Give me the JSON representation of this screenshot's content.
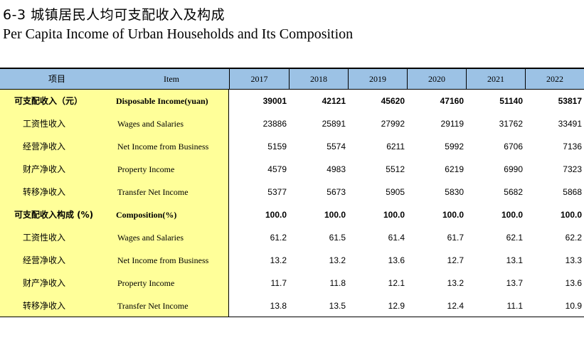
{
  "title_cn": "6-3 城镇居民人均可支配收入及构成",
  "title_en": "Per Capita Income of Urban Households and Its Composition",
  "header": {
    "item_cn": "项目",
    "item_en": "Item",
    "years": [
      "2017",
      "2018",
      "2019",
      "2020",
      "2021",
      "2022"
    ]
  },
  "rows": [
    {
      "cn": "可支配收入（元）",
      "en": "Disposable Income(yuan)",
      "bold": true,
      "values": [
        "39001",
        "42121",
        "45620",
        "47160",
        "51140",
        "53817"
      ]
    },
    {
      "cn": "工资性收入",
      "en": "Wages and Salaries",
      "bold": false,
      "values": [
        "23886",
        "25891",
        "27992",
        "29119",
        "31762",
        "33491"
      ]
    },
    {
      "cn": "经营净收入",
      "en": "Net Income from Business",
      "bold": false,
      "values": [
        "5159",
        "5574",
        "6211",
        "5992",
        "6706",
        "7136"
      ]
    },
    {
      "cn": "财产净收入",
      "en": "Property Income",
      "bold": false,
      "values": [
        "4579",
        "4983",
        "5512",
        "6219",
        "6990",
        "7323"
      ]
    },
    {
      "cn": "转移净收入",
      "en": "Transfer Net Income",
      "bold": false,
      "values": [
        "5377",
        "5673",
        "5905",
        "5830",
        "5682",
        "5868"
      ]
    },
    {
      "cn": "可支配收入构成 (%)",
      "en": "Composition(%)",
      "bold": true,
      "values": [
        "100.0",
        "100.0",
        "100.0",
        "100.0",
        "100.0",
        "100.0"
      ]
    },
    {
      "cn": "工资性收入",
      "en": "Wages and Salaries",
      "bold": false,
      "values": [
        "61.2",
        "61.5",
        "61.4",
        "61.7",
        "62.1",
        "62.2"
      ]
    },
    {
      "cn": "经营净收入",
      "en": "Net Income from Business",
      "bold": false,
      "values": [
        "13.2",
        "13.2",
        "13.6",
        "12.7",
        "13.1",
        "13.3"
      ]
    },
    {
      "cn": "财产净收入",
      "en": "Property Income",
      "bold": false,
      "values": [
        "11.7",
        "11.8",
        "12.1",
        "13.2",
        "13.7",
        "13.6"
      ]
    },
    {
      "cn": "转移净收入",
      "en": "Transfer Net Income",
      "bold": false,
      "values": [
        "13.8",
        "13.5",
        "12.9",
        "12.4",
        "11.1",
        "10.9"
      ]
    }
  ]
}
